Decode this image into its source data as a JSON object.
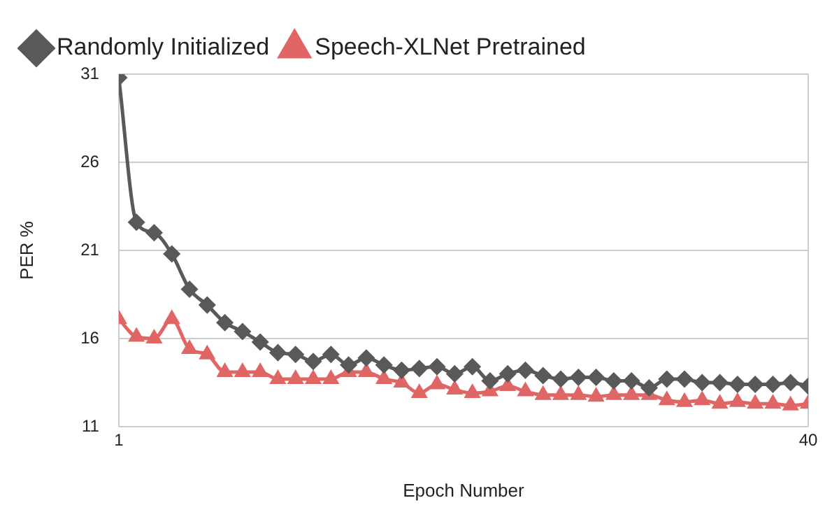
{
  "chart_data": {
    "type": "line",
    "xlabel": "Epoch Number",
    "ylabel": "PER %",
    "x": [
      1,
      2,
      3,
      4,
      5,
      6,
      7,
      8,
      9,
      10,
      11,
      12,
      13,
      14,
      15,
      16,
      17,
      18,
      19,
      20,
      21,
      22,
      23,
      24,
      25,
      26,
      27,
      28,
      29,
      30,
      31,
      32,
      33,
      34,
      35,
      36,
      37,
      38,
      39,
      40
    ],
    "series": [
      {
        "name": "Randomly Initialized",
        "color": "#595959",
        "marker": "diamond",
        "values": [
          30.8,
          22.6,
          22.0,
          20.8,
          18.8,
          17.9,
          16.9,
          16.4,
          15.8,
          15.2,
          15.1,
          14.7,
          15.1,
          14.5,
          14.9,
          14.5,
          14.2,
          14.3,
          14.4,
          14.0,
          14.4,
          13.6,
          14.0,
          14.2,
          13.9,
          13.7,
          13.8,
          13.8,
          13.6,
          13.6,
          13.2,
          13.7,
          13.7,
          13.5,
          13.5,
          13.4,
          13.4,
          13.4,
          13.5,
          13.3
        ]
      },
      {
        "name": "Speech-XLNet Pretrained",
        "color": "#e06666",
        "marker": "triangle",
        "values": [
          17.1,
          16.1,
          16.0,
          17.1,
          15.4,
          15.1,
          14.1,
          14.1,
          14.1,
          13.7,
          13.7,
          13.7,
          13.7,
          14.1,
          14.1,
          13.7,
          13.5,
          12.9,
          13.4,
          13.1,
          12.9,
          13.0,
          13.3,
          13.0,
          12.8,
          12.8,
          12.8,
          12.7,
          12.8,
          12.8,
          12.8,
          12.5,
          12.4,
          12.5,
          12.3,
          12.4,
          12.3,
          12.3,
          12.2,
          12.3
        ]
      }
    ],
    "xlim": [
      1,
      40
    ],
    "xticks": [
      1,
      40
    ],
    "ylim": [
      11,
      31
    ],
    "yticks": [
      11,
      16,
      21,
      26,
      31
    ],
    "grid": true,
    "legend": "top"
  }
}
